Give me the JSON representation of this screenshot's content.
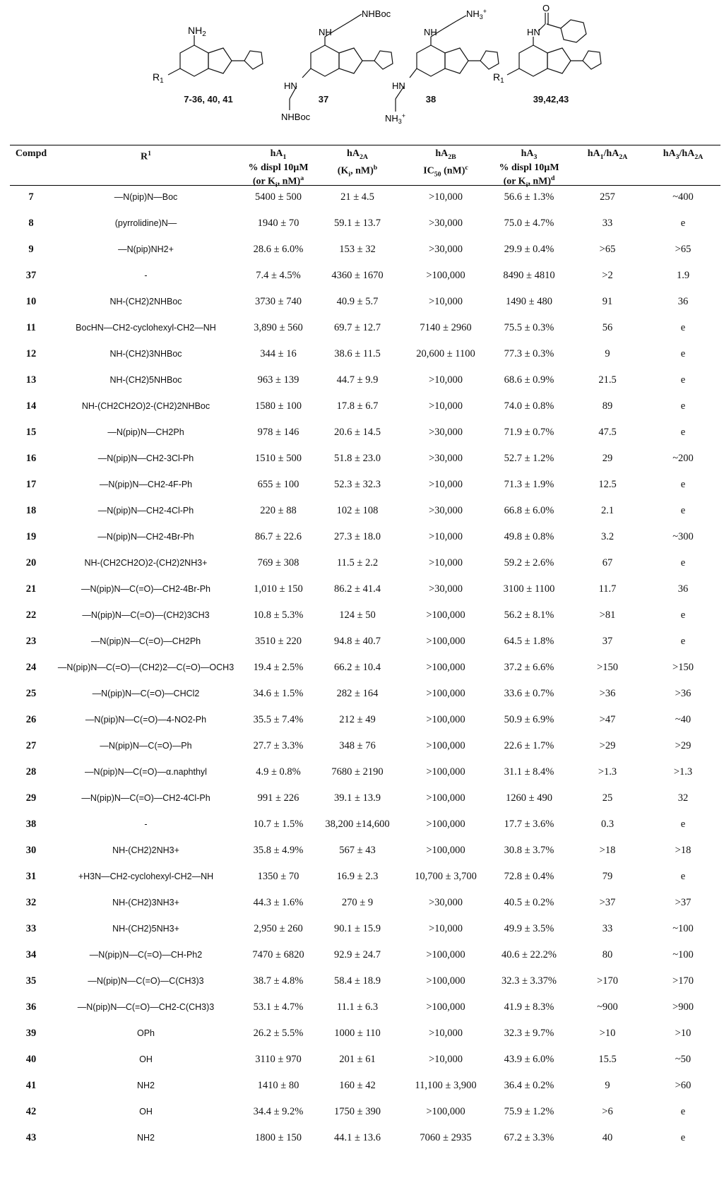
{
  "structures": {
    "s1": {
      "top_sub": "NH2",
      "r_label": "R1",
      "label": "7-36, 40, 41"
    },
    "s2": {
      "top_sub": "NHBoc",
      "bottom_sub": "NHBoc",
      "label": "37"
    },
    "s3": {
      "top_sub": "NH3+",
      "bottom_sub": "NH3+",
      "label": "38"
    },
    "s4": {
      "r_label": "R1",
      "label": "39,42,43"
    }
  },
  "table": {
    "headers": {
      "compd": "Compd",
      "r1": "R1",
      "ha1": [
        "hA1",
        "% displ 10µM",
        "(or Ki, nM)a"
      ],
      "ha2a": [
        "hA2A",
        "(Ki, nM)b"
      ],
      "ha2b": [
        "hA2B",
        "IC50 (nM)c"
      ],
      "ha3": [
        "hA3",
        "% displ 10µM",
        "(or Ki, nM)d"
      ],
      "ratio1": "hA1/hA2A",
      "ratio2": "hA3/hA2A"
    },
    "rows": [
      {
        "compd": "7",
        "r1": "—N(pip)N—Boc",
        "ha1": "5400 ± 500",
        "ha2a": "21 ± 4.5",
        "ha2b": ">10,000",
        "ha3": "56.6 ± 1.3%",
        "r1_ratio": "257",
        "r2_ratio": "~400"
      },
      {
        "compd": "8",
        "r1": "(pyrrolidine)N—",
        "ha1": "1940 ± 70",
        "ha2a": "59.1 ± 13.7",
        "ha2b": ">30,000",
        "ha3": "75.0 ± 4.7%",
        "r1_ratio": "33",
        "r2_ratio": "e"
      },
      {
        "compd": "9",
        "r1": "—N(pip)NH2+",
        "ha1": "28.6 ± 6.0%",
        "ha2a": "153 ± 32",
        "ha2b": ">30,000",
        "ha3": "29.9 ± 0.4%",
        "r1_ratio": ">65",
        "r2_ratio": ">65"
      },
      {
        "compd": "37",
        "r1": "-",
        "ha1": "7.4 ± 4.5%",
        "ha2a": "4360 ± 1670",
        "ha2b": ">100,000",
        "ha3": "8490 ± 4810",
        "r1_ratio": ">2",
        "r2_ratio": "1.9"
      },
      {
        "compd": "10",
        "r1": "NH-(CH2)2NHBoc",
        "ha1": "3730 ± 740",
        "ha2a": "40.9 ± 5.7",
        "ha2b": ">10,000",
        "ha3": "1490 ± 480",
        "r1_ratio": "91",
        "r2_ratio": "36"
      },
      {
        "compd": "11",
        "r1": "BocHN—CH2-cyclohexyl-CH2—NH",
        "ha1": "3,890 ± 560",
        "ha2a": "69.7 ± 12.7",
        "ha2b": "7140 ± 2960",
        "ha3": "75.5 ± 0.3%",
        "r1_ratio": "56",
        "r2_ratio": "e"
      },
      {
        "compd": "12",
        "r1": "NH-(CH2)3NHBoc",
        "ha1": "344 ± 16",
        "ha2a": "38.6 ± 11.5",
        "ha2b": "20,600 ± 1100",
        "ha3": "77.3 ± 0.3%",
        "r1_ratio": "9",
        "r2_ratio": "e"
      },
      {
        "compd": "13",
        "r1": "NH-(CH2)5NHBoc",
        "ha1": "963 ± 139",
        "ha2a": "44.7 ± 9.9",
        "ha2b": ">10,000",
        "ha3": "68.6 ± 0.9%",
        "r1_ratio": "21.5",
        "r2_ratio": "e"
      },
      {
        "compd": "14",
        "r1": "NH-(CH2CH2O)2-(CH2)2NHBoc",
        "ha1": "1580 ± 100",
        "ha2a": "17.8 ± 6.7",
        "ha2b": ">10,000",
        "ha3": "74.0 ± 0.8%",
        "r1_ratio": "89",
        "r2_ratio": "e"
      },
      {
        "compd": "15",
        "r1": "—N(pip)N—CH2Ph",
        "ha1": "978 ± 146",
        "ha2a": "20.6 ± 14.5",
        "ha2b": ">30,000",
        "ha3": "71.9 ± 0.7%",
        "r1_ratio": "47.5",
        "r2_ratio": "e"
      },
      {
        "compd": "16",
        "r1": "—N(pip)N—CH2-3Cl-Ph",
        "ha1": "1510 ± 500",
        "ha2a": "51.8 ± 23.0",
        "ha2b": ">30,000",
        "ha3": "52.7 ± 1.2%",
        "r1_ratio": "29",
        "r2_ratio": "~200"
      },
      {
        "compd": "17",
        "r1": "—N(pip)N—CH2-4F-Ph",
        "ha1": "655 ± 100",
        "ha2a": "52.3 ± 32.3",
        "ha2b": ">10,000",
        "ha3": "71.3 ± 1.9%",
        "r1_ratio": "12.5",
        "r2_ratio": "e"
      },
      {
        "compd": "18",
        "r1": "—N(pip)N—CH2-4Cl-Ph",
        "ha1": "220 ± 88",
        "ha2a": "102 ± 108",
        "ha2b": ">30,000",
        "ha3": "66.8 ± 6.0%",
        "r1_ratio": "2.1",
        "r2_ratio": "e"
      },
      {
        "compd": "19",
        "r1": "—N(pip)N—CH2-4Br-Ph",
        "ha1": "86.7 ± 22.6",
        "ha2a": "27.3 ± 18.0",
        "ha2b": ">10,000",
        "ha3": "49.8 ± 0.8%",
        "r1_ratio": "3.2",
        "r2_ratio": "~300"
      },
      {
        "compd": "20",
        "r1": "NH-(CH2CH2O)2-(CH2)2NH3+",
        "ha1": "769 ± 308",
        "ha2a": "11.5 ± 2.2",
        "ha2b": ">10,000",
        "ha3": "59.2 ± 2.6%",
        "r1_ratio": "67",
        "r2_ratio": "e"
      },
      {
        "compd": "21",
        "r1": "—N(pip)N—C(=O)—CH2-4Br-Ph",
        "ha1": "1,010 ± 150",
        "ha2a": "86.2 ± 41.4",
        "ha2b": ">30,000",
        "ha3": "3100 ± 1100",
        "r1_ratio": "11.7",
        "r2_ratio": "36"
      },
      {
        "compd": "22",
        "r1": "—N(pip)N—C(=O)—(CH2)3CH3",
        "ha1": "10.8 ± 5.3%",
        "ha2a": "124 ± 50",
        "ha2b": ">100,000",
        "ha3": "56.2 ± 8.1%",
        "r1_ratio": ">81",
        "r2_ratio": "e"
      },
      {
        "compd": "23",
        "r1": "—N(pip)N—C(=O)—CH2Ph",
        "ha1": "3510 ± 220",
        "ha2a": "94.8 ± 40.7",
        "ha2b": ">100,000",
        "ha3": "64.5 ± 1.8%",
        "r1_ratio": "37",
        "r2_ratio": "e"
      },
      {
        "compd": "24",
        "r1": "—N(pip)N—C(=O)—(CH2)2—C(=O)—OCH3",
        "ha1": "19.4 ± 2.5%",
        "ha2a": "66.2 ± 10.4",
        "ha2b": ">100,000",
        "ha3": "37.2 ± 6.6%",
        "r1_ratio": ">150",
        "r2_ratio": ">150"
      },
      {
        "compd": "25",
        "r1": "—N(pip)N—C(=O)—CHCl2",
        "ha1": "34.6 ± 1.5%",
        "ha2a": "282 ± 164",
        "ha2b": ">100,000",
        "ha3": "33.6 ± 0.7%",
        "r1_ratio": ">36",
        "r2_ratio": ">36"
      },
      {
        "compd": "26",
        "r1": "—N(pip)N—C(=O)—4-NO2-Ph",
        "ha1": "35.5 ± 7.4%",
        "ha2a": "212 ± 49",
        "ha2b": ">100,000",
        "ha3": "50.9 ± 6.9%",
        "r1_ratio": ">47",
        "r2_ratio": "~40"
      },
      {
        "compd": "27",
        "r1": "—N(pip)N—C(=O)—Ph",
        "ha1": "27.7 ± 3.3%",
        "ha2a": "348 ± 76",
        "ha2b": ">100,000",
        "ha3": "22.6 ± 1.7%",
        "r1_ratio": ">29",
        "r2_ratio": ">29"
      },
      {
        "compd": "28",
        "r1": "—N(pip)N—C(=O)—α.naphthyl",
        "ha1": "4.9 ± 0.8%",
        "ha2a": "7680 ± 2190",
        "ha2b": ">100,000",
        "ha3": "31.1 ± 8.4%",
        "r1_ratio": ">1.3",
        "r2_ratio": ">1.3"
      },
      {
        "compd": "29",
        "r1": "—N(pip)N—C(=O)—CH2-4Cl-Ph",
        "ha1": "991 ± 226",
        "ha2a": "39.1 ± 13.9",
        "ha2b": ">100,000",
        "ha3": "1260 ± 490",
        "r1_ratio": "25",
        "r2_ratio": "32"
      },
      {
        "compd": "38",
        "r1": "-",
        "ha1": "10.7 ± 1.5%",
        "ha2a": "38,200 ±14,600",
        "ha2b": ">100,000",
        "ha3": "17.7 ± 3.6%",
        "r1_ratio": "0.3",
        "r2_ratio": "e"
      },
      {
        "compd": "30",
        "r1": "NH-(CH2)2NH3+",
        "ha1": "35.8 ± 4.9%",
        "ha2a": "567 ± 43",
        "ha2b": ">100,000",
        "ha3": "30.8 ± 3.7%",
        "r1_ratio": ">18",
        "r2_ratio": ">18"
      },
      {
        "compd": "31",
        "r1": "+H3N—CH2-cyclohexyl-CH2—NH",
        "ha1": "1350 ± 70",
        "ha2a": "16.9 ± 2.3",
        "ha2b": "10,700 ± 3,700",
        "ha3": "72.8 ± 0.4%",
        "r1_ratio": "79",
        "r2_ratio": "e"
      },
      {
        "compd": "32",
        "r1": "NH-(CH2)3NH3+",
        "ha1": "44.3 ± 1.6%",
        "ha2a": "270 ± 9",
        "ha2b": ">30,000",
        "ha3": "40.5 ± 0.2%",
        "r1_ratio": ">37",
        "r2_ratio": ">37"
      },
      {
        "compd": "33",
        "r1": "NH-(CH2)5NH3+",
        "ha1": "2,950 ± 260",
        "ha2a": "90.1 ± 15.9",
        "ha2b": ">10,000",
        "ha3": "49.9 ± 3.5%",
        "r1_ratio": "33",
        "r2_ratio": "~100"
      },
      {
        "compd": "34",
        "r1": "—N(pip)N—C(=O)—CH-Ph2",
        "ha1": "7470 ± 6820",
        "ha2a": "92.9 ± 24.7",
        "ha2b": ">100,000",
        "ha3": "40.6 ± 22.2%",
        "r1_ratio": "80",
        "r2_ratio": "~100"
      },
      {
        "compd": "35",
        "r1": "—N(pip)N—C(=O)—C(CH3)3",
        "ha1": "38.7 ± 4.8%",
        "ha2a": "58.4 ± 18.9",
        "ha2b": ">100,000",
        "ha3": "32.3 ± 3.37%",
        "r1_ratio": ">170",
        "r2_ratio": ">170"
      },
      {
        "compd": "36",
        "r1": "—N(pip)N—C(=O)—CH2-C(CH3)3",
        "ha1": "53.1 ± 4.7%",
        "ha2a": "11.1 ± 6.3",
        "ha2b": ">100,000",
        "ha3": "41.9 ± 8.3%",
        "r1_ratio": "~900",
        "r2_ratio": ">900"
      },
      {
        "compd": "39",
        "r1": "OPh",
        "ha1": "26.2 ± 5.5%",
        "ha2a": "1000 ± 110",
        "ha2b": ">10,000",
        "ha3": "32.3 ± 9.7%",
        "r1_ratio": ">10",
        "r2_ratio": ">10"
      },
      {
        "compd": "40",
        "r1": "OH",
        "ha1": "3110 ± 970",
        "ha2a": "201 ± 61",
        "ha2b": ">10,000",
        "ha3": "43.9 ± 6.0%",
        "r1_ratio": "15.5",
        "r2_ratio": "~50"
      },
      {
        "compd": "41",
        "r1": "NH2",
        "ha1": "1410 ± 80",
        "ha2a": "160 ± 42",
        "ha2b": "11,100 ± 3,900",
        "ha3": "36.4 ± 0.2%",
        "r1_ratio": "9",
        "r2_ratio": ">60"
      },
      {
        "compd": "42",
        "r1": "OH",
        "ha1": "34.4 ± 9.2%",
        "ha2a": "1750 ± 390",
        "ha2b": ">100,000",
        "ha3": "75.9 ± 1.2%",
        "r1_ratio": ">6",
        "r2_ratio": "e"
      },
      {
        "compd": "43",
        "r1": "NH2",
        "ha1": "1800 ± 150",
        "ha2a": "44.1 ± 13.6",
        "ha2b": "7060 ± 2935",
        "ha3": "67.2 ± 3.3%",
        "r1_ratio": "40",
        "r2_ratio": "e"
      }
    ]
  }
}
